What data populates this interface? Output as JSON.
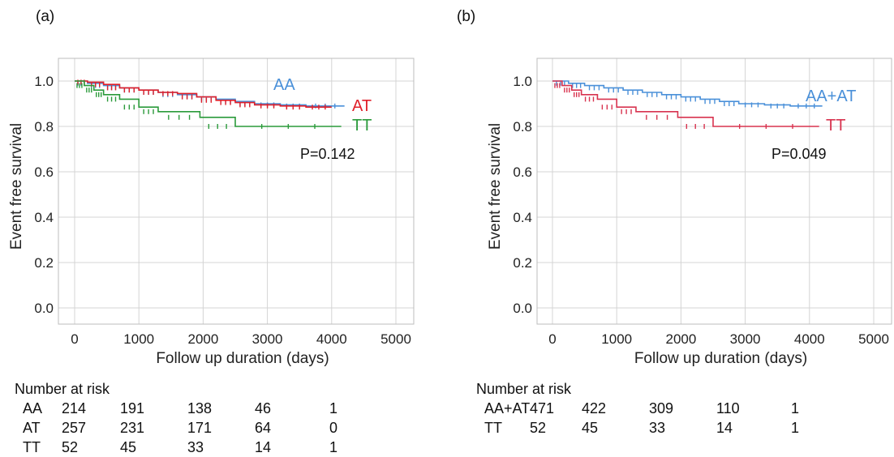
{
  "panels": [
    {
      "label": "(a)",
      "risk_title": "Number at risk",
      "risk_rows": [
        {
          "group": "AA",
          "values": [
            "214",
            "191",
            "138",
            "46",
            "1"
          ]
        },
        {
          "group": "AT",
          "values": [
            "257",
            "231",
            "171",
            "64",
            "0"
          ]
        },
        {
          "group": "TT",
          "values": [
            "52",
            "45",
            "33",
            "14",
            "1"
          ]
        }
      ]
    },
    {
      "label": "(b)",
      "risk_title": "Number at risk",
      "risk_rows": [
        {
          "group": "AA+AT",
          "values": [
            "471",
            "422",
            "309",
            "110",
            "1"
          ]
        },
        {
          "group": "TT",
          "values": [
            "52",
            "45",
            "33",
            "14",
            "1"
          ]
        }
      ]
    }
  ],
  "chart_data": [
    {
      "type": "line",
      "subtype": "kaplan-meier step",
      "xlabel": "Follow up duration (days)",
      "ylabel": "Event free survival",
      "xlim": [
        0,
        5000
      ],
      "ylim": [
        0.0,
        1.0
      ],
      "xticks": [
        "0",
        "1000",
        "2000",
        "3000",
        "4000",
        "5000"
      ],
      "yticks": [
        "0.0",
        "0.2",
        "0.4",
        "0.6",
        "0.8",
        "1.0"
      ],
      "grid": true,
      "annotation": "P=0.142",
      "series": [
        {
          "name": "AA",
          "color": "#4a90d9",
          "x": [
            0,
            200,
            450,
            700,
            1000,
            1300,
            1600,
            1900,
            2200,
            2500,
            2800,
            3200,
            3600,
            4200
          ],
          "y": [
            1.0,
            0.99,
            0.98,
            0.97,
            0.96,
            0.95,
            0.94,
            0.93,
            0.92,
            0.91,
            0.9,
            0.895,
            0.89,
            0.89
          ]
        },
        {
          "name": "AT",
          "color": "#e0202a",
          "x": [
            0,
            200,
            450,
            700,
            1000,
            1300,
            1600,
            1900,
            2200,
            2500,
            2800,
            3200,
            3600,
            4000
          ],
          "y": [
            1.0,
            0.995,
            0.985,
            0.97,
            0.96,
            0.95,
            0.945,
            0.93,
            0.915,
            0.905,
            0.895,
            0.89,
            0.885,
            0.885
          ]
        },
        {
          "name": "TT",
          "color": "#2a9a3a",
          "x": [
            0,
            150,
            300,
            450,
            700,
            1000,
            1300,
            1950,
            2500,
            4150
          ],
          "y": [
            1.0,
            0.98,
            0.96,
            0.94,
            0.92,
            0.885,
            0.865,
            0.84,
            0.8,
            0.8
          ]
        }
      ]
    },
    {
      "type": "line",
      "subtype": "kaplan-meier step",
      "xlabel": "Follow up duration (days)",
      "ylabel": "Event free survival",
      "xlim": [
        0,
        5000
      ],
      "ylim": [
        0.0,
        1.0
      ],
      "xticks": [
        "0",
        "1000",
        "2000",
        "3000",
        "4000",
        "5000"
      ],
      "yticks": [
        "0.0",
        "0.2",
        "0.4",
        "0.6",
        "0.8",
        "1.0"
      ],
      "grid": true,
      "annotation": "P=0.049",
      "series": [
        {
          "name": "AA+AT",
          "color": "#4a90d9",
          "x": [
            0,
            250,
            500,
            800,
            1100,
            1400,
            1700,
            2000,
            2300,
            2600,
            2900,
            3300,
            3700,
            4200
          ],
          "y": [
            1.0,
            0.99,
            0.98,
            0.97,
            0.96,
            0.95,
            0.94,
            0.93,
            0.92,
            0.91,
            0.9,
            0.895,
            0.89,
            0.89
          ]
        },
        {
          "name": "TT",
          "color": "#d8334f",
          "x": [
            0,
            150,
            300,
            450,
            700,
            1000,
            1300,
            1950,
            2500,
            4150
          ],
          "y": [
            1.0,
            0.98,
            0.96,
            0.94,
            0.92,
            0.885,
            0.865,
            0.84,
            0.8,
            0.8
          ]
        }
      ]
    }
  ]
}
